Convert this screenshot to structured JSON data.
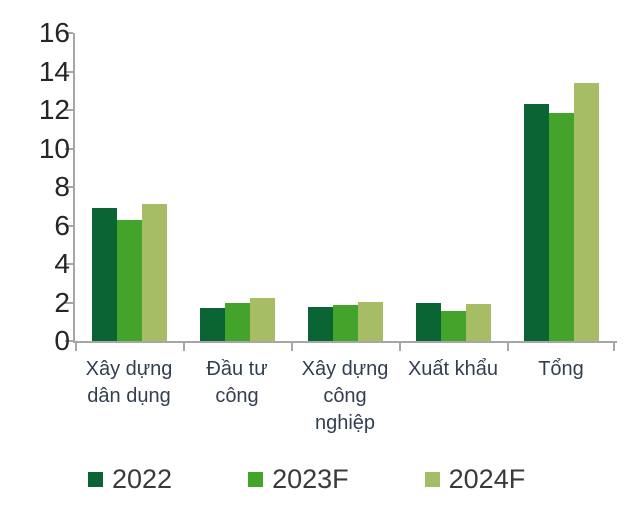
{
  "chart_data": {
    "type": "bar",
    "title": "",
    "xlabel": "",
    "ylabel": "",
    "categories": [
      "Xây dựng dân dụng",
      "Đầu tư công",
      "Xây dựng công nghiệp",
      "Xuất khẩu",
      "Tổng"
    ],
    "category_label_lines": [
      [
        "Xây dựng",
        "dân dụng"
      ],
      [
        "Đầu tư",
        "công"
      ],
      [
        "Xây dựng",
        "công",
        "nghiệp"
      ],
      [
        "Xuất khẩu"
      ],
      [
        "Tổng"
      ]
    ],
    "series": [
      {
        "name": "2022",
        "color": "#0a6433",
        "values": [
          6.9,
          1.7,
          1.75,
          2.0,
          12.3
        ]
      },
      {
        "name": "2023F",
        "color": "#43a32a",
        "values": [
          6.3,
          2.0,
          1.85,
          1.55,
          11.85
        ]
      },
      {
        "name": "2024F",
        "color": "#a6bd66",
        "values": [
          7.1,
          2.25,
          2.05,
          1.9,
          13.4
        ]
      }
    ],
    "ylim": [
      0,
      16
    ],
    "yticks": [
      0,
      2,
      4,
      6,
      8,
      10,
      12,
      14,
      16
    ],
    "grid": false,
    "legend_position": "bottom"
  },
  "colors": {
    "axis": "#a6a6a6",
    "ytick_label": "#262626",
    "category_label": "#333f50",
    "legend_label": "#3a3a3a",
    "background": "#ffffff"
  }
}
